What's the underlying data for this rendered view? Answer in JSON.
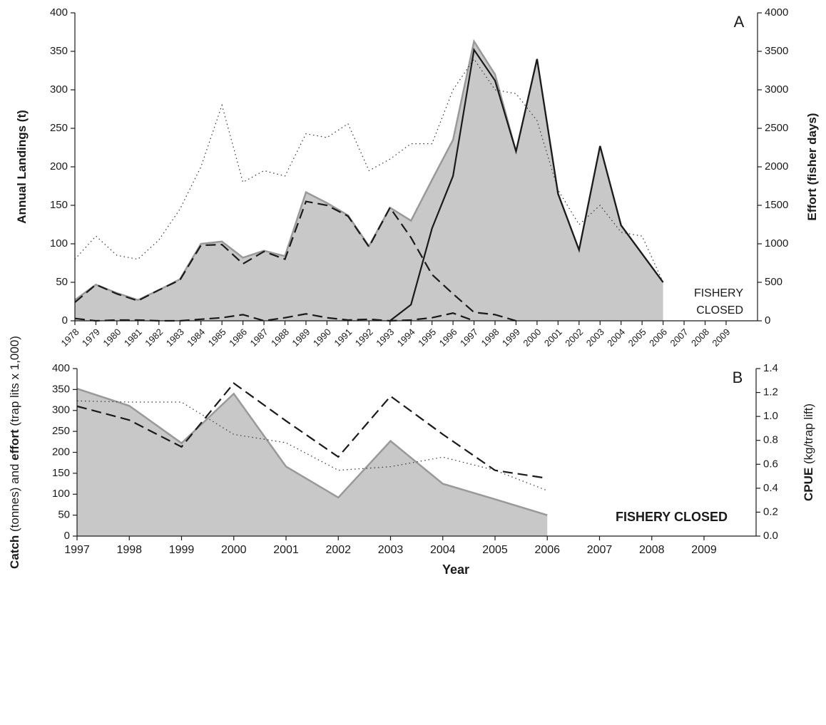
{
  "chart_data": [
    {
      "type": "line",
      "panel_label": "A",
      "ylabel": [
        {
          "text": "Annual Landings (t)",
          "bold": true
        }
      ],
      "y2label": [
        {
          "text": "Effort (fisher days)",
          "bold": true
        }
      ],
      "annotation": [
        "FISHERY",
        "CLOSED"
      ],
      "categories": [
        "1978",
        "1979",
        "1980",
        "1981",
        "1982",
        "1983",
        "1984",
        "1985",
        "1986",
        "1987",
        "1988",
        "1989",
        "1990",
        "1991",
        "1992",
        "1993",
        "1994",
        "1995",
        "1996",
        "1997",
        "1998",
        "1999",
        "2000",
        "2001",
        "2002",
        "2003",
        "2004",
        "2005",
        "2006",
        "2007",
        "2008",
        "2009"
      ],
      "ylim": [
        0,
        400
      ],
      "yticks": [
        0,
        50,
        100,
        150,
        200,
        250,
        300,
        350,
        400
      ],
      "y2lim": [
        0,
        4000
      ],
      "y2ticks": [
        0,
        500,
        1000,
        1500,
        2000,
        2500,
        3000,
        3500,
        4000
      ],
      "series": [
        {
          "style": "area",
          "color": "#999999",
          "fill": "#c8c8c8",
          "values": [
            27,
            47,
            36,
            27,
            40,
            54,
            100,
            103,
            82,
            91,
            84,
            167,
            153,
            137,
            97,
            147,
            130,
            183,
            235,
            363,
            320,
            220,
            340,
            165,
            92,
            227,
            124,
            87,
            50,
            null,
            null,
            null
          ]
        },
        {
          "style": "dotted",
          "color": "#333333",
          "axis": "y2",
          "values": [
            800,
            1100,
            850,
            800,
            1050,
            1450,
            2000,
            2800,
            1800,
            1950,
            1880,
            2430,
            2380,
            2560,
            1950,
            2100,
            2300,
            2300,
            3000,
            3400,
            3000,
            2950,
            2600,
            1700,
            1250,
            1500,
            1150,
            1100,
            500,
            null,
            null,
            null
          ]
        },
        {
          "style": "dashed",
          "color": "#1a1a1a",
          "values": [
            24,
            47,
            35,
            26,
            40,
            53,
            98,
            99,
            74,
            90,
            80,
            155,
            150,
            136,
            96,
            147,
            108,
            60,
            35,
            11,
            8,
            0,
            null,
            null,
            null,
            null,
            null,
            null,
            null,
            null,
            null,
            null
          ]
        },
        {
          "style": "dashed",
          "color": "#1a1a1a",
          "values": [
            3,
            0,
            1,
            1,
            0,
            0,
            2,
            4,
            8,
            0,
            4,
            9,
            4,
            1,
            2,
            0,
            1,
            4,
            10,
            0,
            null,
            null,
            null,
            null,
            null,
            null,
            null,
            null,
            null,
            null,
            null,
            null
          ]
        },
        {
          "style": "solid",
          "color": "#1a1a1a",
          "values": [
            null,
            null,
            null,
            null,
            null,
            null,
            null,
            null,
            null,
            null,
            null,
            null,
            null,
            null,
            null,
            0,
            21,
            120,
            188,
            352,
            312,
            220,
            340,
            165,
            92,
            227,
            124,
            87,
            50,
            null,
            null,
            null
          ]
        }
      ]
    },
    {
      "type": "line",
      "panel_label": "B",
      "ylabel": [
        {
          "text": "Catch",
          "bold": true
        },
        {
          "text": " (tonnes) and ",
          "bold": false
        },
        {
          "text": "effort",
          "bold": true
        },
        {
          "text": " (trap lits x 1,000)",
          "bold": false
        }
      ],
      "y2label": [
        {
          "text": "CPUE",
          "bold": true
        },
        {
          "text": " (kg/trap lift)",
          "bold": false
        }
      ],
      "xlabel": "Year",
      "annotation": [
        "FISHERY CLOSED"
      ],
      "categories": [
        "1997",
        "1998",
        "1999",
        "2000",
        "2001",
        "2002",
        "2003",
        "2004",
        "2005",
        "2006",
        "2007",
        "2008",
        "2009"
      ],
      "ylim": [
        0,
        400
      ],
      "yticks": [
        0,
        50,
        100,
        150,
        200,
        250,
        300,
        350,
        400
      ],
      "y2lim": [
        0,
        1.4
      ],
      "y2ticks": [
        {
          "value": 0,
          "label": "0.0"
        },
        0.2,
        0.4,
        0.6,
        0.8,
        {
          "value": 1,
          "label": "1.0"
        },
        1.2,
        1.4
      ],
      "series": [
        {
          "style": "area",
          "color": "#999999",
          "fill": "#c8c8c8",
          "values": [
            352,
            311,
            222,
            340,
            166,
            92,
            227,
            125,
            88,
            50,
            null,
            null,
            null
          ]
        },
        {
          "style": "dotted",
          "color": "#333333",
          "axis": "y2",
          "values": [
            1.13,
            1.12,
            1.12,
            0.85,
            0.78,
            0.55,
            0.58,
            0.66,
            0.55,
            0.38,
            null,
            null,
            null
          ]
        },
        {
          "style": "dashed",
          "color": "#1a1a1a",
          "values": [
            310,
            277,
            213,
            365,
            275,
            189,
            334,
            243,
            157,
            138,
            null,
            null,
            null
          ]
        }
      ]
    }
  ]
}
